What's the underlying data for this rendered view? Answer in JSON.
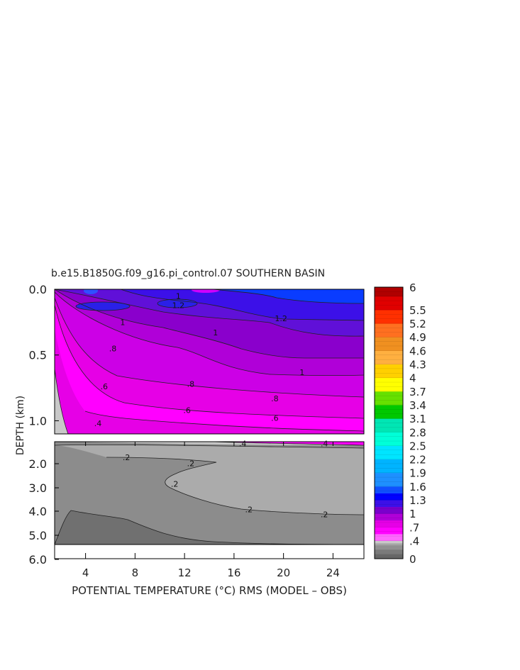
{
  "chart_data": {
    "type": "heatmap",
    "title": "b.e15.B1850G.f09_g16.pi_control.07 SOUTHERN BASIN",
    "xlabel": "POTENTIAL TEMPERATURE (°C) RMS (MODEL – OBS)",
    "ylabel": "DEPTH (km)",
    "x_ticks": [
      "4",
      "8",
      "12",
      "16",
      "20",
      "24"
    ],
    "y_ticks_upper": [
      "0.0",
      "0.5",
      "1.0"
    ],
    "y_ticks_lower": [
      "2.0",
      "3.0",
      "4.0",
      "5.0",
      "6.0"
    ],
    "xlim": [
      1.5,
      26.5
    ],
    "ylim_upper_km": [
      0,
      1.1
    ],
    "ylim_lower_km": [
      1.1,
      6.0
    ],
    "colorbar": {
      "levels": [
        "6",
        "5.5",
        "5.2",
        "4.9",
        "4.6",
        "4.3",
        "4",
        "3.7",
        "3.4",
        "3.1",
        "2.8",
        "2.5",
        "2.2",
        "1.9",
        "1.6",
        "1.3",
        "1",
        ".7",
        ".4",
        "0"
      ],
      "range": [
        0,
        6
      ]
    },
    "contour_labels": [
      {
        "text": "1.2",
        "x": 11.5,
        "z": 0.12
      },
      {
        "text": "1.2",
        "x": 19.8,
        "z": 0.22
      },
      {
        "text": "1",
        "x": 11.5,
        "z": 0.05
      },
      {
        "text": "1",
        "x": 7,
        "z": 0.25
      },
      {
        "text": "1",
        "x": 14.5,
        "z": 0.33
      },
      {
        "text": "1",
        "x": 21.5,
        "z": 0.63
      },
      {
        "text": ".8",
        "x": 6.2,
        "z": 0.45
      },
      {
        "text": ".8",
        "x": 12.5,
        "z": 0.72
      },
      {
        "text": ".8",
        "x": 19.3,
        "z": 0.83
      },
      {
        "text": ".6",
        "x": 5.5,
        "z": 0.74
      },
      {
        "text": ".6",
        "x": 12.2,
        "z": 0.92
      },
      {
        "text": ".6",
        "x": 19.3,
        "z": 0.98
      },
      {
        "text": ".4",
        "x": 5,
        "z": 1.02
      },
      {
        "text": ".4",
        "x": 16.7,
        "z": 1.18
      },
      {
        "text": ".4",
        "x": 23.3,
        "z": 1.18
      },
      {
        "text": ".2",
        "x": 7.3,
        "z": 1.75
      },
      {
        "text": ".2",
        "x": 12.5,
        "z": 2.0
      },
      {
        "text": ".2",
        "x": 11.2,
        "z": 2.85
      },
      {
        "text": ".2",
        "x": 17.2,
        "z": 3.9
      },
      {
        "text": ".2",
        "x": 23.3,
        "z": 4.1
      }
    ]
  }
}
